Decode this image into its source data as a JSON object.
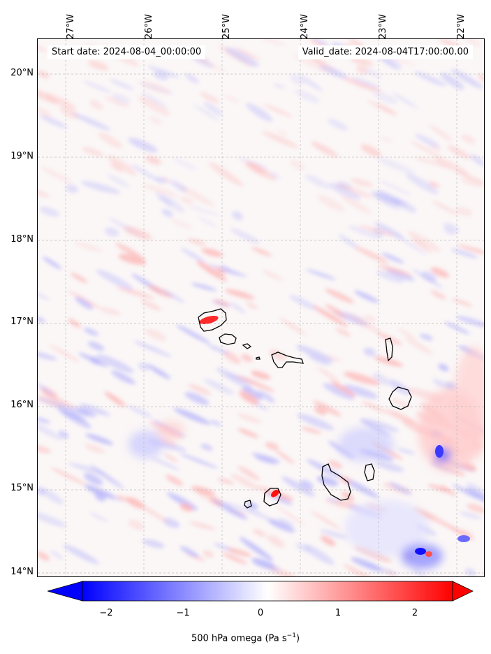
{
  "map": {
    "start_date": "Start date: 2024-08-04_00:00:00",
    "valid_date": "Valid_date: 2024-08-04T17:00:00.00",
    "longitude_labels": [
      "27°W",
      "26°W",
      "25°W",
      "24°W",
      "23°W",
      "22°W"
    ],
    "latitude_labels": [
      "20°N",
      "19°N",
      "18°N",
      "17°N",
      "16°N",
      "15°N",
      "14°N"
    ],
    "extent": {
      "lon_min": -27.35,
      "lon_max": -21.75,
      "lat_min": 13.95,
      "lat_max": 20.45
    }
  },
  "colorbar": {
    "ticks": [
      "−2",
      "−1",
      "0",
      "1",
      "2"
    ],
    "range": [
      -2.5,
      2.5
    ],
    "colormap": "bwr",
    "extend": "both",
    "label": "500 hPa omega (Pa s",
    "label_sup": "−1",
    "label_end": ")"
  },
  "colors": {
    "neg": "#0000ff",
    "mid": "#ffffff",
    "pos": "#ff0000",
    "coast": "#000000"
  }
}
